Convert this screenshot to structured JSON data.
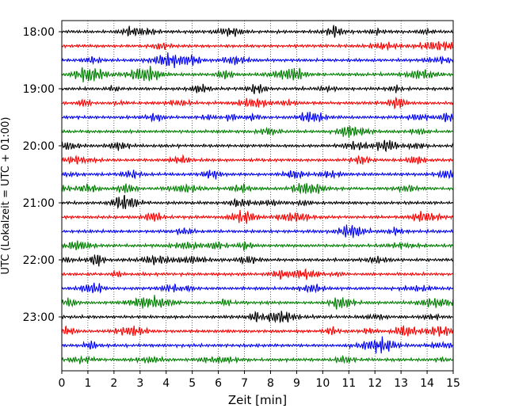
{
  "chart_data": {
    "type": "line",
    "title": "",
    "xlabel": "Zeit  [min]",
    "ylabel": "UTC (Lokalzeit = UTC + 01:00)",
    "xlim": [
      0,
      15
    ],
    "x_ticks": [
      0,
      1,
      2,
      3,
      4,
      5,
      6,
      7,
      8,
      9,
      10,
      11,
      12,
      13,
      14,
      15
    ],
    "x_tick_labels": [
      "0",
      "1",
      "2",
      "3",
      "4",
      "5",
      "6",
      "7",
      "8",
      "9",
      "10",
      "11",
      "12",
      "13",
      "14",
      "15"
    ],
    "y_tick_labels": [
      "18:00",
      "19:00",
      "20:00",
      "21:00",
      "22:00",
      "23:00"
    ],
    "trace_start_times": [
      "18:00",
      "18:15",
      "18:30",
      "18:45",
      "19:00",
      "19:15",
      "19:30",
      "19:45",
      "20:00",
      "20:15",
      "20:30",
      "20:45",
      "21:00",
      "21:15",
      "21:30",
      "21:45",
      "22:00",
      "22:15",
      "22:30",
      "22:45",
      "23:00",
      "23:15",
      "23:30",
      "23:45"
    ],
    "trace_colors": [
      "#000000",
      "#ff0000",
      "#0000ff",
      "#008000"
    ],
    "grid": "vertical dotted at each minute",
    "legend": "none"
  }
}
